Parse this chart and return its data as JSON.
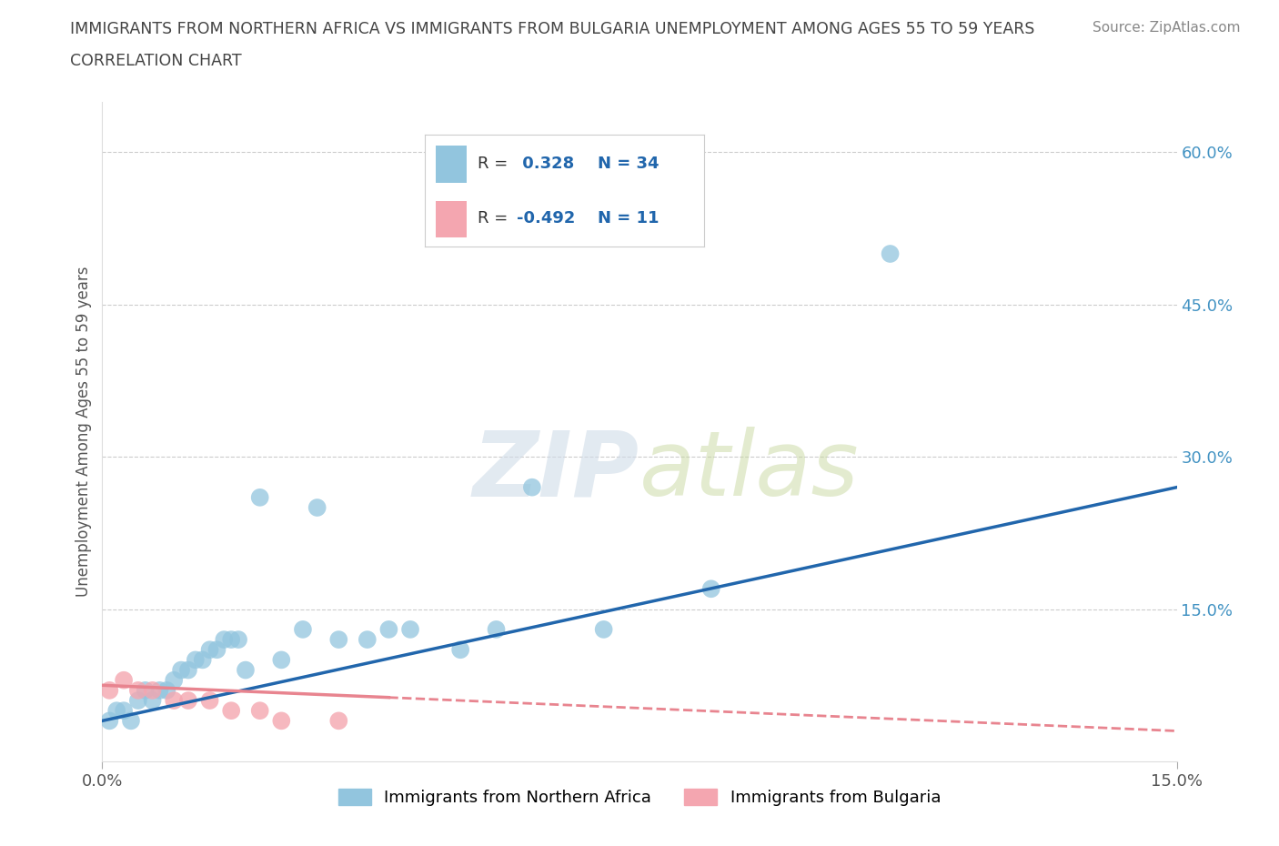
{
  "title_line1": "IMMIGRANTS FROM NORTHERN AFRICA VS IMMIGRANTS FROM BULGARIA UNEMPLOYMENT AMONG AGES 55 TO 59 YEARS",
  "title_line2": "CORRELATION CHART",
  "source": "Source: ZipAtlas.com",
  "ylabel": "Unemployment Among Ages 55 to 59 years",
  "xlim": [
    0.0,
    0.15
  ],
  "ylim": [
    0.0,
    0.65
  ],
  "ytick_labels_right": [
    "60.0%",
    "45.0%",
    "30.0%",
    "15.0%"
  ],
  "ytick_positions_right": [
    0.6,
    0.45,
    0.3,
    0.15
  ],
  "blue_scatter_x": [
    0.001,
    0.002,
    0.003,
    0.004,
    0.005,
    0.006,
    0.007,
    0.008,
    0.009,
    0.01,
    0.011,
    0.012,
    0.013,
    0.014,
    0.015,
    0.016,
    0.017,
    0.018,
    0.019,
    0.02,
    0.022,
    0.025,
    0.028,
    0.03,
    0.033,
    0.037,
    0.04,
    0.043,
    0.05,
    0.055,
    0.06,
    0.07,
    0.085,
    0.11
  ],
  "blue_scatter_y": [
    0.04,
    0.05,
    0.05,
    0.04,
    0.06,
    0.07,
    0.06,
    0.07,
    0.07,
    0.08,
    0.09,
    0.09,
    0.1,
    0.1,
    0.11,
    0.11,
    0.12,
    0.12,
    0.12,
    0.09,
    0.26,
    0.1,
    0.13,
    0.25,
    0.12,
    0.12,
    0.13,
    0.13,
    0.11,
    0.13,
    0.27,
    0.13,
    0.17,
    0.5
  ],
  "pink_scatter_x": [
    0.001,
    0.003,
    0.005,
    0.007,
    0.01,
    0.012,
    0.015,
    0.018,
    0.022,
    0.025,
    0.033
  ],
  "pink_scatter_y": [
    0.07,
    0.08,
    0.07,
    0.07,
    0.06,
    0.06,
    0.06,
    0.05,
    0.05,
    0.04,
    0.04
  ],
  "blue_R": 0.328,
  "blue_N": 34,
  "pink_R": -0.492,
  "pink_N": 11,
  "blue_color": "#92C5DE",
  "pink_color": "#F4A6B0",
  "blue_line_color": "#2166AC",
  "pink_line_color": "#E8848F",
  "watermark_zip": "ZIP",
  "watermark_atlas": "atlas",
  "grid_color": "#CCCCCC",
  "bg_color": "#FFFFFF",
  "title_color": "#444444",
  "source_color": "#888888",
  "right_axis_color": "#4393C3"
}
